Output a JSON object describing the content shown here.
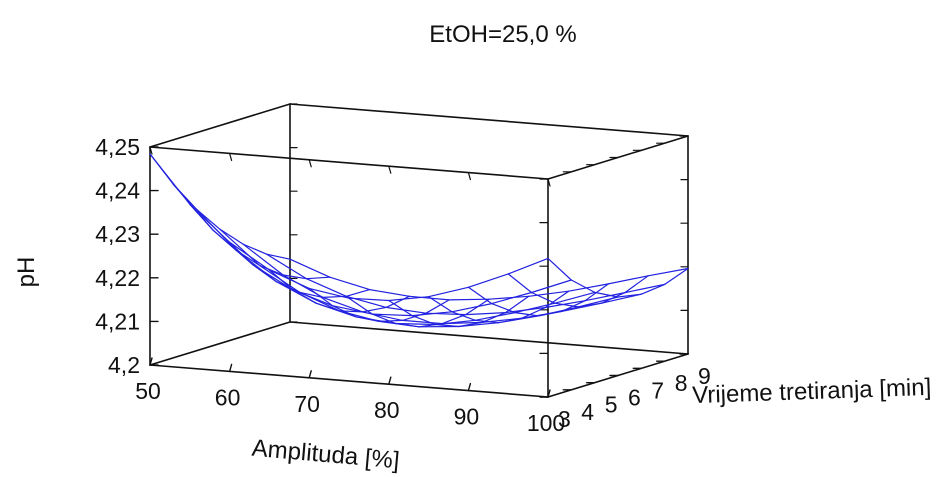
{
  "chart_data": {
    "type": "surface3d",
    "title": "EtOH=25,0 %",
    "xlabel": "Amplituda [%]",
    "ylabel": "Vrijeme tretiranja [min]",
    "zlabel": "pH",
    "xlim": [
      50,
      100
    ],
    "ylim": [
      3,
      9
    ],
    "zlim": [
      4.2,
      4.25
    ],
    "x_ticks": [
      "50",
      "60",
      "70",
      "80",
      "90",
      "100"
    ],
    "y_ticks": [
      "3",
      "4",
      "5",
      "6",
      "7",
      "8",
      "9"
    ],
    "z_ticks": [
      "4,2",
      "4,21",
      "4,22",
      "4,23",
      "4,24",
      "4,25"
    ],
    "grid_x": [
      50,
      55,
      60,
      65,
      70,
      75,
      80,
      85,
      90,
      95,
      100
    ],
    "grid_y": [
      3,
      4,
      5,
      6,
      7,
      8,
      9
    ],
    "z_values": [
      [
        4.2484,
        4.2376,
        4.2296,
        4.224,
        4.2205,
        4.219,
        4.2192,
        4.2208,
        4.2237,
        4.2275,
        4.2318
      ],
      [
        4.2398,
        4.23,
        4.2228,
        4.2178,
        4.2149,
        4.2137,
        4.2141,
        4.2157,
        4.2183,
        4.2216,
        4.2252
      ],
      [
        4.2324,
        4.2237,
        4.2173,
        4.2131,
        4.2107,
        4.2099,
        4.2104,
        4.2121,
        4.2146,
        4.2175,
        4.2207
      ],
      [
        4.2262,
        4.2186,
        4.2132,
        4.2097,
        4.208,
        4.2075,
        4.2083,
        4.2099,
        4.2122,
        4.215,
        4.218
      ],
      [
        4.2211,
        4.2148,
        4.2104,
        4.2078,
        4.2066,
        4.2066,
        4.2076,
        4.2093,
        4.2116,
        4.2142,
        4.217
      ],
      [
        4.2172,
        4.2123,
        4.209,
        4.2072,
        4.2066,
        4.207,
        4.2082,
        4.2101,
        4.2124,
        4.215,
        4.2176
      ],
      [
        4.2144,
        4.211,
        4.2089,
        4.2081,
        4.208,
        4.2089,
        4.2103,
        4.2122,
        4.2146,
        4.2172,
        4.2196
      ]
    ],
    "surface_color": "#2222e0",
    "grid": false,
    "legend": false
  }
}
